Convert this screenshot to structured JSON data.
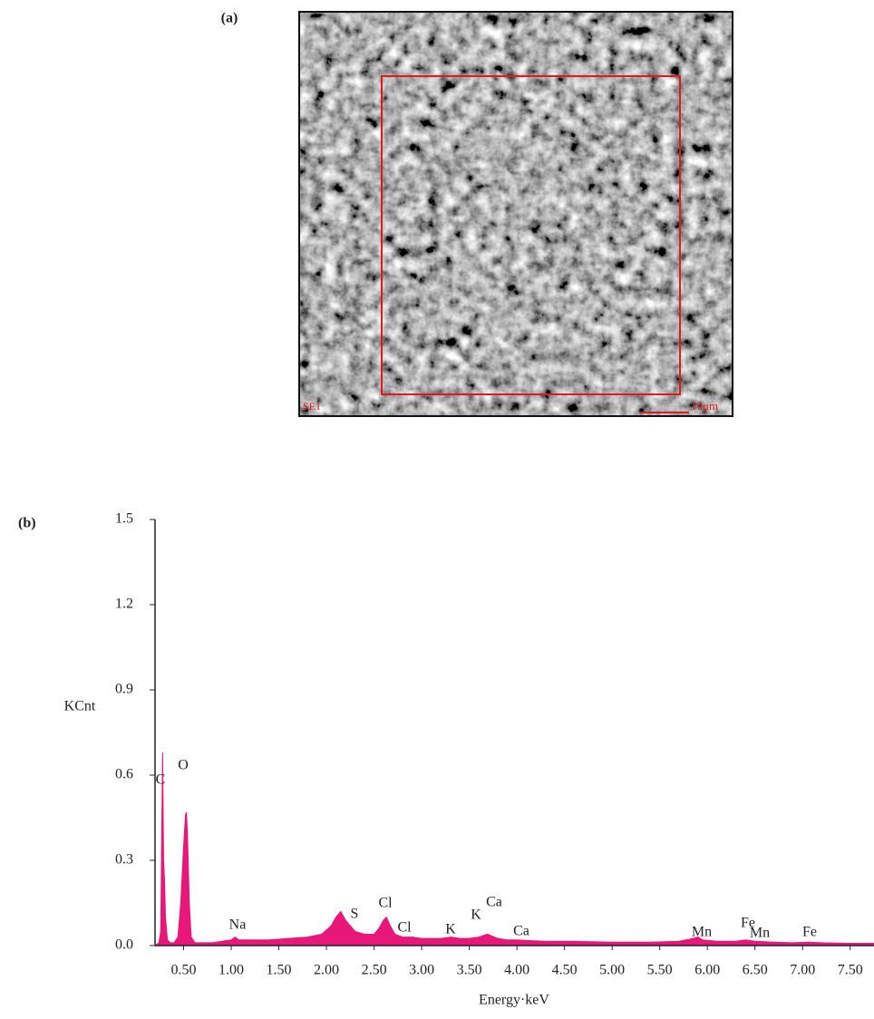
{
  "panel_labels": [
    "(a)",
    "(b)"
  ],
  "image": {
    "labels": [
      "SE1",
      "10μm"
    ]
  },
  "chart_data": {
    "type": "area",
    "x_label": "Energy·keV",
    "y_label": "KCnt",
    "color": "#e8177a",
    "x": [
      0.2,
      0.24,
      0.26,
      0.27,
      0.28,
      0.29,
      0.3,
      0.31,
      0.33,
      0.36,
      0.4,
      0.44,
      0.47,
      0.5,
      0.52,
      0.53,
      0.54,
      0.56,
      0.58,
      0.62,
      0.7,
      0.8,
      0.9,
      1.0,
      1.04,
      1.08,
      1.2,
      1.4,
      1.6,
      1.8,
      1.95,
      2.05,
      2.1,
      2.15,
      2.2,
      2.25,
      2.3,
      2.4,
      2.5,
      2.55,
      2.6,
      2.63,
      2.67,
      2.72,
      2.8,
      2.9,
      3.0,
      3.1,
      3.2,
      3.31,
      3.4,
      3.5,
      3.6,
      3.69,
      3.8,
      3.9,
      4.01,
      4.1,
      4.3,
      4.6,
      5.0,
      5.4,
      5.7,
      5.85,
      5.9,
      5.95,
      6.1,
      6.3,
      6.4,
      6.5,
      6.7,
      6.9,
      7.06,
      7.2,
      7.5,
      7.75
    ],
    "values": [
      0.0,
      0.01,
      0.05,
      0.4,
      0.68,
      0.3,
      0.23,
      0.1,
      0.02,
      0.01,
      0.01,
      0.03,
      0.15,
      0.35,
      0.46,
      0.47,
      0.4,
      0.15,
      0.03,
      0.01,
      0.01,
      0.01,
      0.015,
      0.02,
      0.03,
      0.02,
      0.02,
      0.02,
      0.025,
      0.03,
      0.04,
      0.07,
      0.1,
      0.12,
      0.09,
      0.07,
      0.05,
      0.04,
      0.04,
      0.06,
      0.09,
      0.1,
      0.07,
      0.04,
      0.03,
      0.03,
      0.025,
      0.025,
      0.025,
      0.03,
      0.025,
      0.025,
      0.03,
      0.04,
      0.025,
      0.02,
      0.02,
      0.018,
      0.015,
      0.015,
      0.012,
      0.012,
      0.015,
      0.025,
      0.03,
      0.02,
      0.015,
      0.015,
      0.02,
      0.015,
      0.012,
      0.01,
      0.012,
      0.01,
      0.008,
      0.008
    ],
    "annotations": [
      "C",
      "O",
      "Na",
      "S",
      "Cl",
      "Cl",
      "K",
      "K",
      "Ca",
      "Ca",
      "Mn",
      "Fe",
      "Mn",
      "Fe"
    ],
    "xlim": [
      0.2,
      7.75
    ],
    "ylim": [
      0,
      1.5
    ],
    "xticks": [
      {
        "value": 0.5,
        "label": "0.50"
      },
      {
        "value": 1.0,
        "label": "1.00"
      },
      {
        "value": 1.5,
        "label": "1.50"
      },
      {
        "value": 2.0,
        "label": "2.00"
      },
      {
        "value": 2.5,
        "label": "2.50"
      },
      {
        "value": 3.0,
        "label": "3.00"
      },
      {
        "value": 3.5,
        "label": "3.50"
      },
      {
        "value": 4.0,
        "label": "4.00"
      },
      {
        "value": 4.5,
        "label": "4.50"
      },
      {
        "value": 5.0,
        "label": "5.00"
      },
      {
        "value": 5.5,
        "label": "5.50"
      },
      {
        "value": 6.0,
        "label": "6.00"
      },
      {
        "value": 6.5,
        "label": "6.50"
      },
      {
        "value": 7.0,
        "label": "7.00"
      },
      {
        "value": 7.5,
        "label": "7.50"
      }
    ],
    "yticks": [
      {
        "value": 0,
        "label": "0.0"
      },
      0.3,
      0.6,
      0.9,
      1.2,
      1.5
    ],
    "grid": false
  }
}
